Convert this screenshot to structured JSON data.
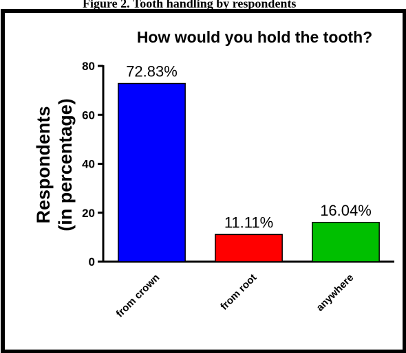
{
  "caption": "Figure 2. Tooth handling by respondents",
  "chart_data": {
    "type": "bar",
    "title": "How would you hold the tooth?",
    "xlabel": "",
    "ylabel": [
      "Respondents",
      "(in percentage)"
    ],
    "categories": [
      "from crown",
      "from root",
      "anywhere"
    ],
    "values": [
      72.83,
      11.11,
      16.04
    ],
    "data_labels": [
      "72.83%",
      "11.11%",
      "16.04%"
    ],
    "colors": [
      "#0000ff",
      "#ff0000",
      "#00bf00"
    ],
    "ylim": [
      0,
      80
    ],
    "yticks": [
      0,
      20,
      40,
      60,
      80
    ],
    "grid": false,
    "legend": "none"
  }
}
